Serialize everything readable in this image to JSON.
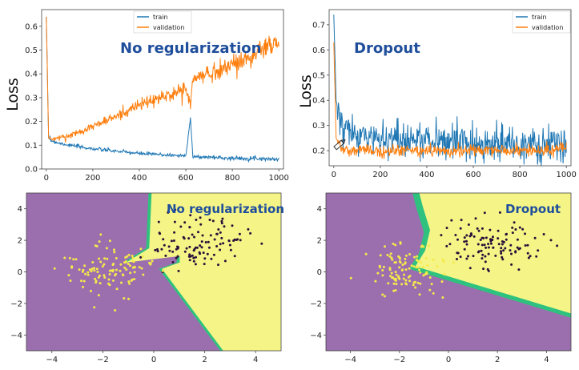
{
  "panels": [
    {
      "id": "loss-noreg",
      "type": "line",
      "title": "No regularization",
      "ylabel": "Loss",
      "xlim": [
        -20,
        1020
      ],
      "ylim": [
        0,
        0.67
      ],
      "xticks": [
        0,
        200,
        400,
        600,
        800,
        1000
      ],
      "yticks": [
        0.0,
        0.1,
        0.2,
        0.3,
        0.4,
        0.5,
        0.6
      ],
      "legend": {
        "position": "top-center",
        "entries": [
          "train",
          "validation"
        ]
      },
      "series": [
        {
          "name": "train",
          "color": "#1f77b4",
          "x": [
            0,
            10,
            20,
            50,
            100,
            200,
            300,
            400,
            500,
            600,
            620,
            630,
            700,
            800,
            900,
            1000
          ],
          "y": [
            0.64,
            0.13,
            0.12,
            0.11,
            0.1,
            0.085,
            0.075,
            0.065,
            0.06,
            0.055,
            0.22,
            0.05,
            0.05,
            0.045,
            0.045,
            0.04
          ]
        },
        {
          "name": "validation",
          "color": "#ff7f0e",
          "x": [
            0,
            10,
            20,
            50,
            100,
            200,
            300,
            400,
            500,
            600,
            620,
            630,
            700,
            800,
            900,
            950,
            1000
          ],
          "y": [
            0.64,
            0.13,
            0.125,
            0.13,
            0.14,
            0.18,
            0.22,
            0.27,
            0.3,
            0.34,
            0.26,
            0.38,
            0.4,
            0.44,
            0.48,
            0.52,
            0.52
          ]
        }
      ]
    },
    {
      "id": "loss-dropout",
      "type": "line",
      "title": "Dropout",
      "ylabel": "Loss",
      "xlim": [
        -20,
        1020
      ],
      "ylim": [
        0.14,
        0.76
      ],
      "xticks": [
        0,
        200,
        400,
        600,
        800,
        1000
      ],
      "yticks": [
        0.2,
        0.3,
        0.4,
        0.5,
        0.6,
        0.7
      ],
      "legend": {
        "position": "top-right",
        "entries": [
          "train",
          "validation"
        ]
      },
      "series": [
        {
          "name": "train",
          "color": "#1f77b4",
          "x": [
            0,
            10,
            30,
            50,
            100,
            200,
            300,
            400,
            500,
            600,
            700,
            800,
            900,
            1000
          ],
          "y": [
            0.74,
            0.4,
            0.3,
            0.28,
            0.26,
            0.25,
            0.25,
            0.24,
            0.24,
            0.23,
            0.23,
            0.22,
            0.22,
            0.22
          ]
        },
        {
          "name": "validation",
          "color": "#ff7f0e",
          "x": [
            0,
            10,
            30,
            50,
            100,
            200,
            300,
            400,
            500,
            600,
            700,
            800,
            900,
            1000
          ],
          "y": [
            0.63,
            0.25,
            0.21,
            0.2,
            0.2,
            0.2,
            0.2,
            0.2,
            0.2,
            0.2,
            0.2,
            0.2,
            0.2,
            0.21
          ]
        }
      ]
    },
    {
      "id": "boundary-noreg",
      "type": "scatter",
      "title": "No regularization",
      "xlim": [
        -5,
        5
      ],
      "ylim": [
        -5,
        5
      ],
      "xticks": [
        -4,
        -2,
        0,
        2,
        4
      ],
      "yticks": [
        -4,
        -2,
        0,
        2,
        4
      ],
      "region_colors": {
        "class_a": "#9b6fae",
        "class_b": "#f5f587",
        "edge": "#2ec27e"
      },
      "points": {
        "yellow_center": [
          -1.8,
          0.1
        ],
        "dark_center": [
          1.8,
          1.9
        ],
        "yellow_color": "#f5e94a",
        "dark_color": "#2a0f3a"
      }
    },
    {
      "id": "boundary-dropout",
      "type": "scatter",
      "title": "Dropout",
      "xlim": [
        -5,
        5
      ],
      "ylim": [
        -5,
        5
      ],
      "xticks": [
        -4,
        -2,
        0,
        2,
        4
      ],
      "yticks": [
        -4,
        -2,
        0,
        2,
        4
      ],
      "region_colors": {
        "class_a": "#9b6fae",
        "class_b": "#f5f587",
        "edge": "#2ec27e"
      },
      "points": {
        "yellow_center": [
          -1.8,
          0.1
        ],
        "dark_center": [
          1.8,
          1.9
        ],
        "yellow_color": "#f5e94a",
        "dark_color": "#2a0f3a"
      }
    }
  ]
}
